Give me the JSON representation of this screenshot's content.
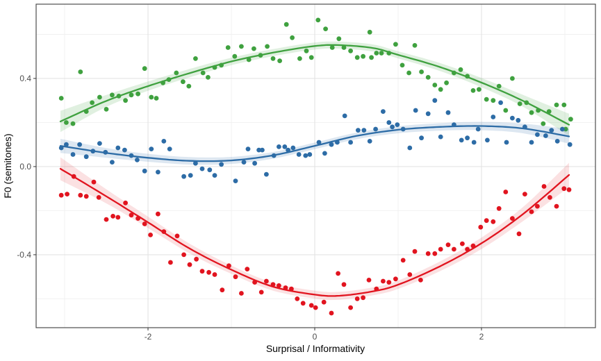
{
  "chart_data": {
    "type": "scatter",
    "title": "",
    "xlabel": "Surprisal / Informativity",
    "ylabel": "F0 (semitones)",
    "xlim": [
      -3.342,
      3.367
    ],
    "ylim": [
      -0.731,
      0.737
    ],
    "grid": true,
    "legend_position": "none",
    "panel_border_color": "#4d4d4d",
    "grid_major_color": "#e3e3e3",
    "grid_minor_color": "#f0f0f0",
    "x_ticks": [
      {
        "value": -2,
        "label": "-2"
      },
      {
        "value": 0,
        "label": "0"
      },
      {
        "value": 2,
        "label": "2"
      }
    ],
    "x_minor_ticks": [
      -3,
      -1,
      1,
      3
    ],
    "y_ticks": [
      {
        "value": 0.4,
        "label": "0.4"
      },
      {
        "value": 0.0,
        "label": "0.0"
      },
      {
        "value": -0.4,
        "label": "-0.4"
      }
    ],
    "y_minor_ticks": [
      0.6,
      0.2,
      -0.2,
      -0.6
    ],
    "series": [
      {
        "name": "green-series",
        "color": "#3fa13f",
        "band_color": "rgba(63,161,63,0.16)",
        "points": [
          [
            -3.04,
            0.31
          ],
          [
            -2.98,
            0.2
          ],
          [
            -2.9,
            0.195
          ],
          [
            -2.81,
            0.43
          ],
          [
            -2.74,
            0.25
          ],
          [
            -2.67,
            0.29
          ],
          [
            -2.58,
            0.315
          ],
          [
            -2.5,
            0.26
          ],
          [
            -2.43,
            0.325
          ],
          [
            -2.35,
            0.32
          ],
          [
            -2.27,
            0.3
          ],
          [
            -2.2,
            0.325
          ],
          [
            -2.12,
            0.33
          ],
          [
            -2.04,
            0.445
          ],
          [
            -1.96,
            0.315
          ],
          [
            -1.9,
            0.31
          ],
          [
            -1.82,
            0.38
          ],
          [
            -1.75,
            0.395
          ],
          [
            -1.66,
            0.425
          ],
          [
            -1.58,
            0.385
          ],
          [
            -1.51,
            0.365
          ],
          [
            -1.43,
            0.49
          ],
          [
            -1.34,
            0.425
          ],
          [
            -1.28,
            0.405
          ],
          [
            -1.2,
            0.45
          ],
          [
            -1.12,
            0.46
          ],
          [
            -1.04,
            0.54
          ],
          [
            -0.96,
            0.5
          ],
          [
            -0.88,
            0.545
          ],
          [
            -0.79,
            0.485
          ],
          [
            -0.73,
            0.535
          ],
          [
            -0.65,
            0.505
          ],
          [
            -0.57,
            0.545
          ],
          [
            -0.5,
            0.49
          ],
          [
            -0.42,
            0.48
          ],
          [
            -0.34,
            0.645
          ],
          [
            -0.27,
            0.585
          ],
          [
            -0.18,
            0.49
          ],
          [
            -0.1,
            0.525
          ],
          [
            -0.04,
            0.495
          ],
          [
            0.04,
            0.665
          ],
          [
            0.13,
            0.625
          ],
          [
            0.21,
            0.54
          ],
          [
            0.29,
            0.58
          ],
          [
            0.35,
            0.54
          ],
          [
            0.43,
            0.525
          ],
          [
            0.51,
            0.495
          ],
          [
            0.58,
            0.5
          ],
          [
            0.66,
            0.61
          ],
          [
            0.68,
            0.495
          ],
          [
            0.74,
            0.515
          ],
          [
            0.8,
            0.515
          ],
          [
            0.89,
            0.515
          ],
          [
            0.97,
            0.555
          ],
          [
            1.05,
            0.46
          ],
          [
            1.13,
            0.425
          ],
          [
            1.2,
            0.55
          ],
          [
            1.28,
            0.43
          ],
          [
            1.36,
            0.405
          ],
          [
            1.44,
            0.37
          ],
          [
            1.51,
            0.35
          ],
          [
            1.58,
            0.38
          ],
          [
            1.67,
            0.425
          ],
          [
            1.75,
            0.44
          ],
          [
            1.83,
            0.41
          ],
          [
            1.9,
            0.345
          ],
          [
            1.97,
            0.35
          ],
          [
            2.06,
            0.305
          ],
          [
            2.14,
            0.3
          ],
          [
            2.21,
            0.365
          ],
          [
            2.29,
            0.255
          ],
          [
            2.37,
            0.4
          ],
          [
            2.46,
            0.285
          ],
          [
            2.54,
            0.29
          ],
          [
            2.6,
            0.245
          ],
          [
            2.68,
            0.255
          ],
          [
            2.74,
            0.195
          ],
          [
            2.81,
            0.25
          ],
          [
            2.9,
            0.28
          ],
          [
            2.99,
            0.28
          ],
          [
            3.01,
            0.17
          ],
          [
            3.07,
            0.215
          ]
        ],
        "smooth": [
          [
            -3.05,
            0.205,
            0.048
          ],
          [
            -2.5,
            0.298,
            0.027
          ],
          [
            -2.0,
            0.365,
            0.021
          ],
          [
            -1.5,
            0.424,
            0.019
          ],
          [
            -1.0,
            0.477,
            0.017
          ],
          [
            -0.5,
            0.517,
            0.016
          ],
          [
            0.0,
            0.547,
            0.016
          ],
          [
            0.3,
            0.551,
            0.016
          ],
          [
            0.7,
            0.538,
            0.016
          ],
          [
            1.0,
            0.507,
            0.016
          ],
          [
            1.5,
            0.452,
            0.018
          ],
          [
            2.0,
            0.381,
            0.021
          ],
          [
            2.5,
            0.298,
            0.027
          ],
          [
            3.05,
            0.19,
            0.05
          ]
        ]
      },
      {
        "name": "blue-series",
        "color": "#2d6ca6",
        "band_color": "rgba(45,108,166,0.16)",
        "points": [
          [
            -3.04,
            0.085
          ],
          [
            -2.98,
            0.1
          ],
          [
            -2.9,
            0.055
          ],
          [
            -2.82,
            0.1
          ],
          [
            -2.74,
            0.045
          ],
          [
            -2.66,
            0.07
          ],
          [
            -2.58,
            0.105
          ],
          [
            -2.51,
            0.065
          ],
          [
            -2.43,
            0.02
          ],
          [
            -2.36,
            0.085
          ],
          [
            -2.28,
            0.075
          ],
          [
            -2.2,
            0.05
          ],
          [
            -2.13,
            0.03
          ],
          [
            -2.04,
            -0.02
          ],
          [
            -1.96,
            0.08
          ],
          [
            -1.88,
            -0.025
          ],
          [
            -1.81,
            0.115
          ],
          [
            -1.74,
            0.08
          ],
          [
            -1.57,
            -0.045
          ],
          [
            -1.49,
            -0.04
          ],
          [
            -1.43,
            0.015
          ],
          [
            -1.35,
            -0.01
          ],
          [
            -1.26,
            -0.015
          ],
          [
            -1.2,
            -0.04
          ],
          [
            -1.12,
            0.01
          ],
          [
            -0.95,
            -0.065
          ],
          [
            -0.85,
            0.02
          ],
          [
            -0.8,
            0.08
          ],
          [
            -0.72,
            0.015
          ],
          [
            -0.67,
            0.075
          ],
          [
            -0.63,
            0.075
          ],
          [
            -0.58,
            -0.035
          ],
          [
            -0.49,
            0.05
          ],
          [
            -0.43,
            0.09
          ],
          [
            -0.36,
            0.09
          ],
          [
            -0.32,
            0.075
          ],
          [
            -0.26,
            0.085
          ],
          [
            -0.19,
            0.055
          ],
          [
            -0.11,
            0.05
          ],
          [
            -0.06,
            0.055
          ],
          [
            0.05,
            0.11
          ],
          [
            0.12,
            0.06
          ],
          [
            0.2,
            0.1
          ],
          [
            0.27,
            0.11
          ],
          [
            0.36,
            0.23
          ],
          [
            0.43,
            0.11
          ],
          [
            0.52,
            0.165
          ],
          [
            0.59,
            0.165
          ],
          [
            0.66,
            0.115
          ],
          [
            0.73,
            0.17
          ],
          [
            0.82,
            0.25
          ],
          [
            0.89,
            0.2
          ],
          [
            0.93,
            0.18
          ],
          [
            0.99,
            0.19
          ],
          [
            1.06,
            0.17
          ],
          [
            1.14,
            0.085
          ],
          [
            1.21,
            0.255
          ],
          [
            1.28,
            0.13
          ],
          [
            1.36,
            0.24
          ],
          [
            1.44,
            0.3
          ],
          [
            1.51,
            0.135
          ],
          [
            1.6,
            0.245
          ],
          [
            1.67,
            0.19
          ],
          [
            1.76,
            0.12
          ],
          [
            1.83,
            0.13
          ],
          [
            1.91,
            0.11
          ],
          [
            1.96,
            0.17
          ],
          [
            2.07,
            0.12
          ],
          [
            2.14,
            0.225
          ],
          [
            2.23,
            0.29
          ],
          [
            2.3,
            0.11
          ],
          [
            2.37,
            0.22
          ],
          [
            2.44,
            0.21
          ],
          [
            2.52,
            0.18
          ],
          [
            2.6,
            0.11
          ],
          [
            2.67,
            0.145
          ],
          [
            2.77,
            0.14
          ],
          [
            2.84,
            0.165
          ],
          [
            2.91,
            0.115
          ],
          [
            2.97,
            0.17
          ],
          [
            3.06,
            0.1
          ]
        ],
        "smooth": [
          [
            -3.05,
            0.094,
            0.032
          ],
          [
            -2.5,
            0.062,
            0.022
          ],
          [
            -2.0,
            0.04,
            0.018
          ],
          [
            -1.5,
            0.026,
            0.017
          ],
          [
            -1.0,
            0.028,
            0.016
          ],
          [
            -0.5,
            0.051,
            0.015
          ],
          [
            0.0,
            0.094,
            0.015
          ],
          [
            0.5,
            0.139,
            0.015
          ],
          [
            1.0,
            0.167,
            0.016
          ],
          [
            1.5,
            0.18,
            0.017
          ],
          [
            2.0,
            0.184,
            0.019
          ],
          [
            2.5,
            0.173,
            0.022
          ],
          [
            3.05,
            0.137,
            0.033
          ]
        ]
      },
      {
        "name": "red-series",
        "color": "#e1141f",
        "band_color": "rgba(225,20,31,0.13)",
        "points": [
          [
            -3.04,
            -0.13
          ],
          [
            -2.97,
            -0.125
          ],
          [
            -2.89,
            -0.045
          ],
          [
            -2.81,
            -0.13
          ],
          [
            -2.74,
            -0.135
          ],
          [
            -2.65,
            -0.07
          ],
          [
            -2.59,
            -0.14
          ],
          [
            -2.5,
            -0.24
          ],
          [
            -2.42,
            -0.225
          ],
          [
            -2.36,
            -0.23
          ],
          [
            -2.27,
            -0.165
          ],
          [
            -2.2,
            -0.22
          ],
          [
            -2.12,
            -0.235
          ],
          [
            -2.04,
            -0.26
          ],
          [
            -1.97,
            -0.31
          ],
          [
            -1.88,
            -0.215
          ],
          [
            -1.81,
            -0.295
          ],
          [
            -1.73,
            -0.435
          ],
          [
            -1.65,
            -0.315
          ],
          [
            -1.57,
            -0.4
          ],
          [
            -1.5,
            -0.445
          ],
          [
            -1.42,
            -0.42
          ],
          [
            -1.35,
            -0.475
          ],
          [
            -1.27,
            -0.48
          ],
          [
            -1.2,
            -0.49
          ],
          [
            -1.11,
            -0.56
          ],
          [
            -1.03,
            -0.45
          ],
          [
            -0.95,
            -0.5
          ],
          [
            -0.88,
            -0.575
          ],
          [
            -0.81,
            -0.465
          ],
          [
            -0.72,
            -0.525
          ],
          [
            -0.64,
            -0.57
          ],
          [
            -0.58,
            -0.52
          ],
          [
            -0.5,
            -0.535
          ],
          [
            -0.43,
            -0.54
          ],
          [
            -0.35,
            -0.55
          ],
          [
            -0.28,
            -0.555
          ],
          [
            -0.21,
            -0.6
          ],
          [
            -0.14,
            -0.62
          ],
          [
            -0.04,
            -0.63
          ],
          [
            0.01,
            -0.64
          ],
          [
            0.11,
            -0.615
          ],
          [
            0.2,
            -0.665
          ],
          [
            0.28,
            -0.485
          ],
          [
            0.35,
            -0.535
          ],
          [
            0.43,
            -0.64
          ],
          [
            0.51,
            -0.6
          ],
          [
            0.58,
            -0.595
          ],
          [
            0.65,
            -0.515
          ],
          [
            0.74,
            -0.555
          ],
          [
            0.82,
            -0.52
          ],
          [
            0.89,
            -0.525
          ],
          [
            0.97,
            -0.51
          ],
          [
            1.06,
            -0.425
          ],
          [
            1.14,
            -0.49
          ],
          [
            1.2,
            -0.385
          ],
          [
            1.27,
            -0.515
          ],
          [
            1.36,
            -0.395
          ],
          [
            1.44,
            -0.395
          ],
          [
            1.51,
            -0.375
          ],
          [
            1.6,
            -0.355
          ],
          [
            1.67,
            -0.375
          ],
          [
            1.77,
            -0.35
          ],
          [
            1.83,
            -0.375
          ],
          [
            1.9,
            -0.36
          ],
          [
            1.99,
            -0.275
          ],
          [
            2.06,
            -0.245
          ],
          [
            2.14,
            -0.25
          ],
          [
            2.21,
            -0.19
          ],
          [
            2.29,
            -0.115
          ],
          [
            2.37,
            -0.235
          ],
          [
            2.45,
            -0.305
          ],
          [
            2.52,
            -0.125
          ],
          [
            2.6,
            -0.205
          ],
          [
            2.67,
            -0.18
          ],
          [
            2.75,
            -0.09
          ],
          [
            2.82,
            -0.14
          ],
          [
            2.9,
            -0.18
          ],
          [
            2.99,
            -0.1
          ],
          [
            3.05,
            -0.105
          ]
        ],
        "smooth": [
          [
            -3.05,
            -0.01,
            0.052
          ],
          [
            -2.5,
            -0.135,
            0.032
          ],
          [
            -2.0,
            -0.253,
            0.026
          ],
          [
            -1.5,
            -0.372,
            0.022
          ],
          [
            -1.0,
            -0.468,
            0.019
          ],
          [
            -0.5,
            -0.545,
            0.018
          ],
          [
            0.0,
            -0.581,
            0.018
          ],
          [
            0.3,
            -0.586,
            0.018
          ],
          [
            0.7,
            -0.566,
            0.018
          ],
          [
            1.0,
            -0.536,
            0.019
          ],
          [
            1.5,
            -0.453,
            0.022
          ],
          [
            2.0,
            -0.348,
            0.026
          ],
          [
            2.5,
            -0.215,
            0.032
          ],
          [
            3.05,
            -0.038,
            0.055
          ]
        ]
      }
    ]
  }
}
